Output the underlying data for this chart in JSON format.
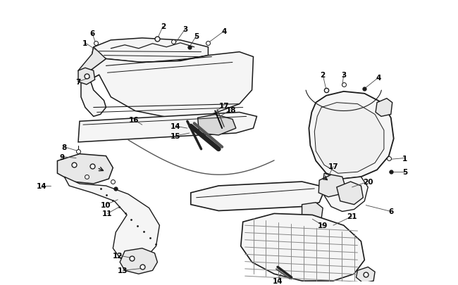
{
  "background_color": "#ffffff",
  "fig_width": 6.5,
  "fig_height": 4.06,
  "dpi": 100,
  "line_color": "#1a1a1a",
  "label_color": "#000000"
}
